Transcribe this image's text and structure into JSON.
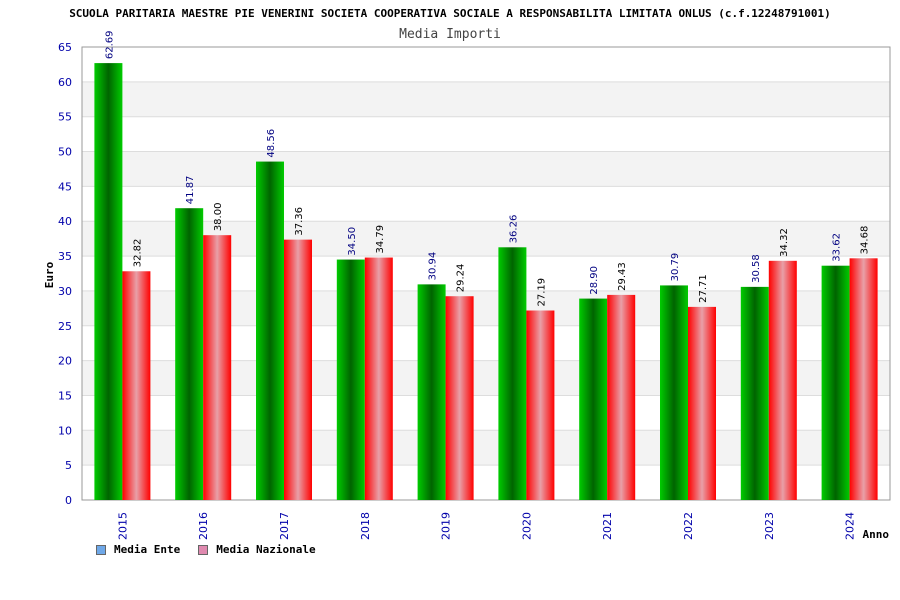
{
  "chart_data": {
    "type": "bar",
    "title": "SCUOLA PARITARIA MAESTRE PIE VENERINI SOCIETA COOPERATIVA SOCIALE A RESPONSABILITA LIMITATA ONLUS (c.f.12248791001)",
    "subtitle": "Media Importi",
    "xlabel": "Anno",
    "ylabel": "Euro",
    "ylim": [
      0,
      65
    ],
    "yticks": [
      0,
      5,
      10,
      15,
      20,
      25,
      30,
      35,
      40,
      45,
      50,
      55,
      60,
      65
    ],
    "categories": [
      "2015",
      "2016",
      "2017",
      "2018",
      "2019",
      "2020",
      "2021",
      "2022",
      "2023",
      "2024"
    ],
    "series": [
      {
        "name": "Media Ente",
        "values": [
          62.69,
          41.87,
          48.56,
          34.5,
          30.94,
          36.26,
          28.9,
          30.79,
          30.58,
          33.62
        ],
        "labels": [
          "62.69",
          "41.87",
          "48.56",
          "34.50",
          "30.94",
          "36.26",
          "28.90",
          "30.79",
          "30.58",
          "33.62"
        ],
        "color": "#00b000",
        "label_color": "#000080"
      },
      {
        "name": "Media Nazionale",
        "values": [
          32.82,
          38.0,
          37.36,
          34.79,
          29.24,
          27.19,
          29.43,
          27.71,
          34.32,
          34.68
        ],
        "labels": [
          "32.82",
          "38.00",
          "37.36",
          "34.79",
          "29.24",
          "27.19",
          "29.43",
          "27.71",
          "34.32",
          "34.68"
        ],
        "color": "#ff0000",
        "label_color": "#000000"
      }
    ],
    "grid": true,
    "legend_position": "bottom-left"
  },
  "legend": {
    "items": [
      {
        "label": "Media Ente",
        "swatch_color": "#6fa8e8"
      },
      {
        "label": "Media Nazionale",
        "swatch_color": "#e08ab0"
      }
    ]
  },
  "colors": {
    "tick_label": "#0000aa",
    "axis": "#999999",
    "grid": "#dddddd",
    "band": "#f3f3f3"
  }
}
